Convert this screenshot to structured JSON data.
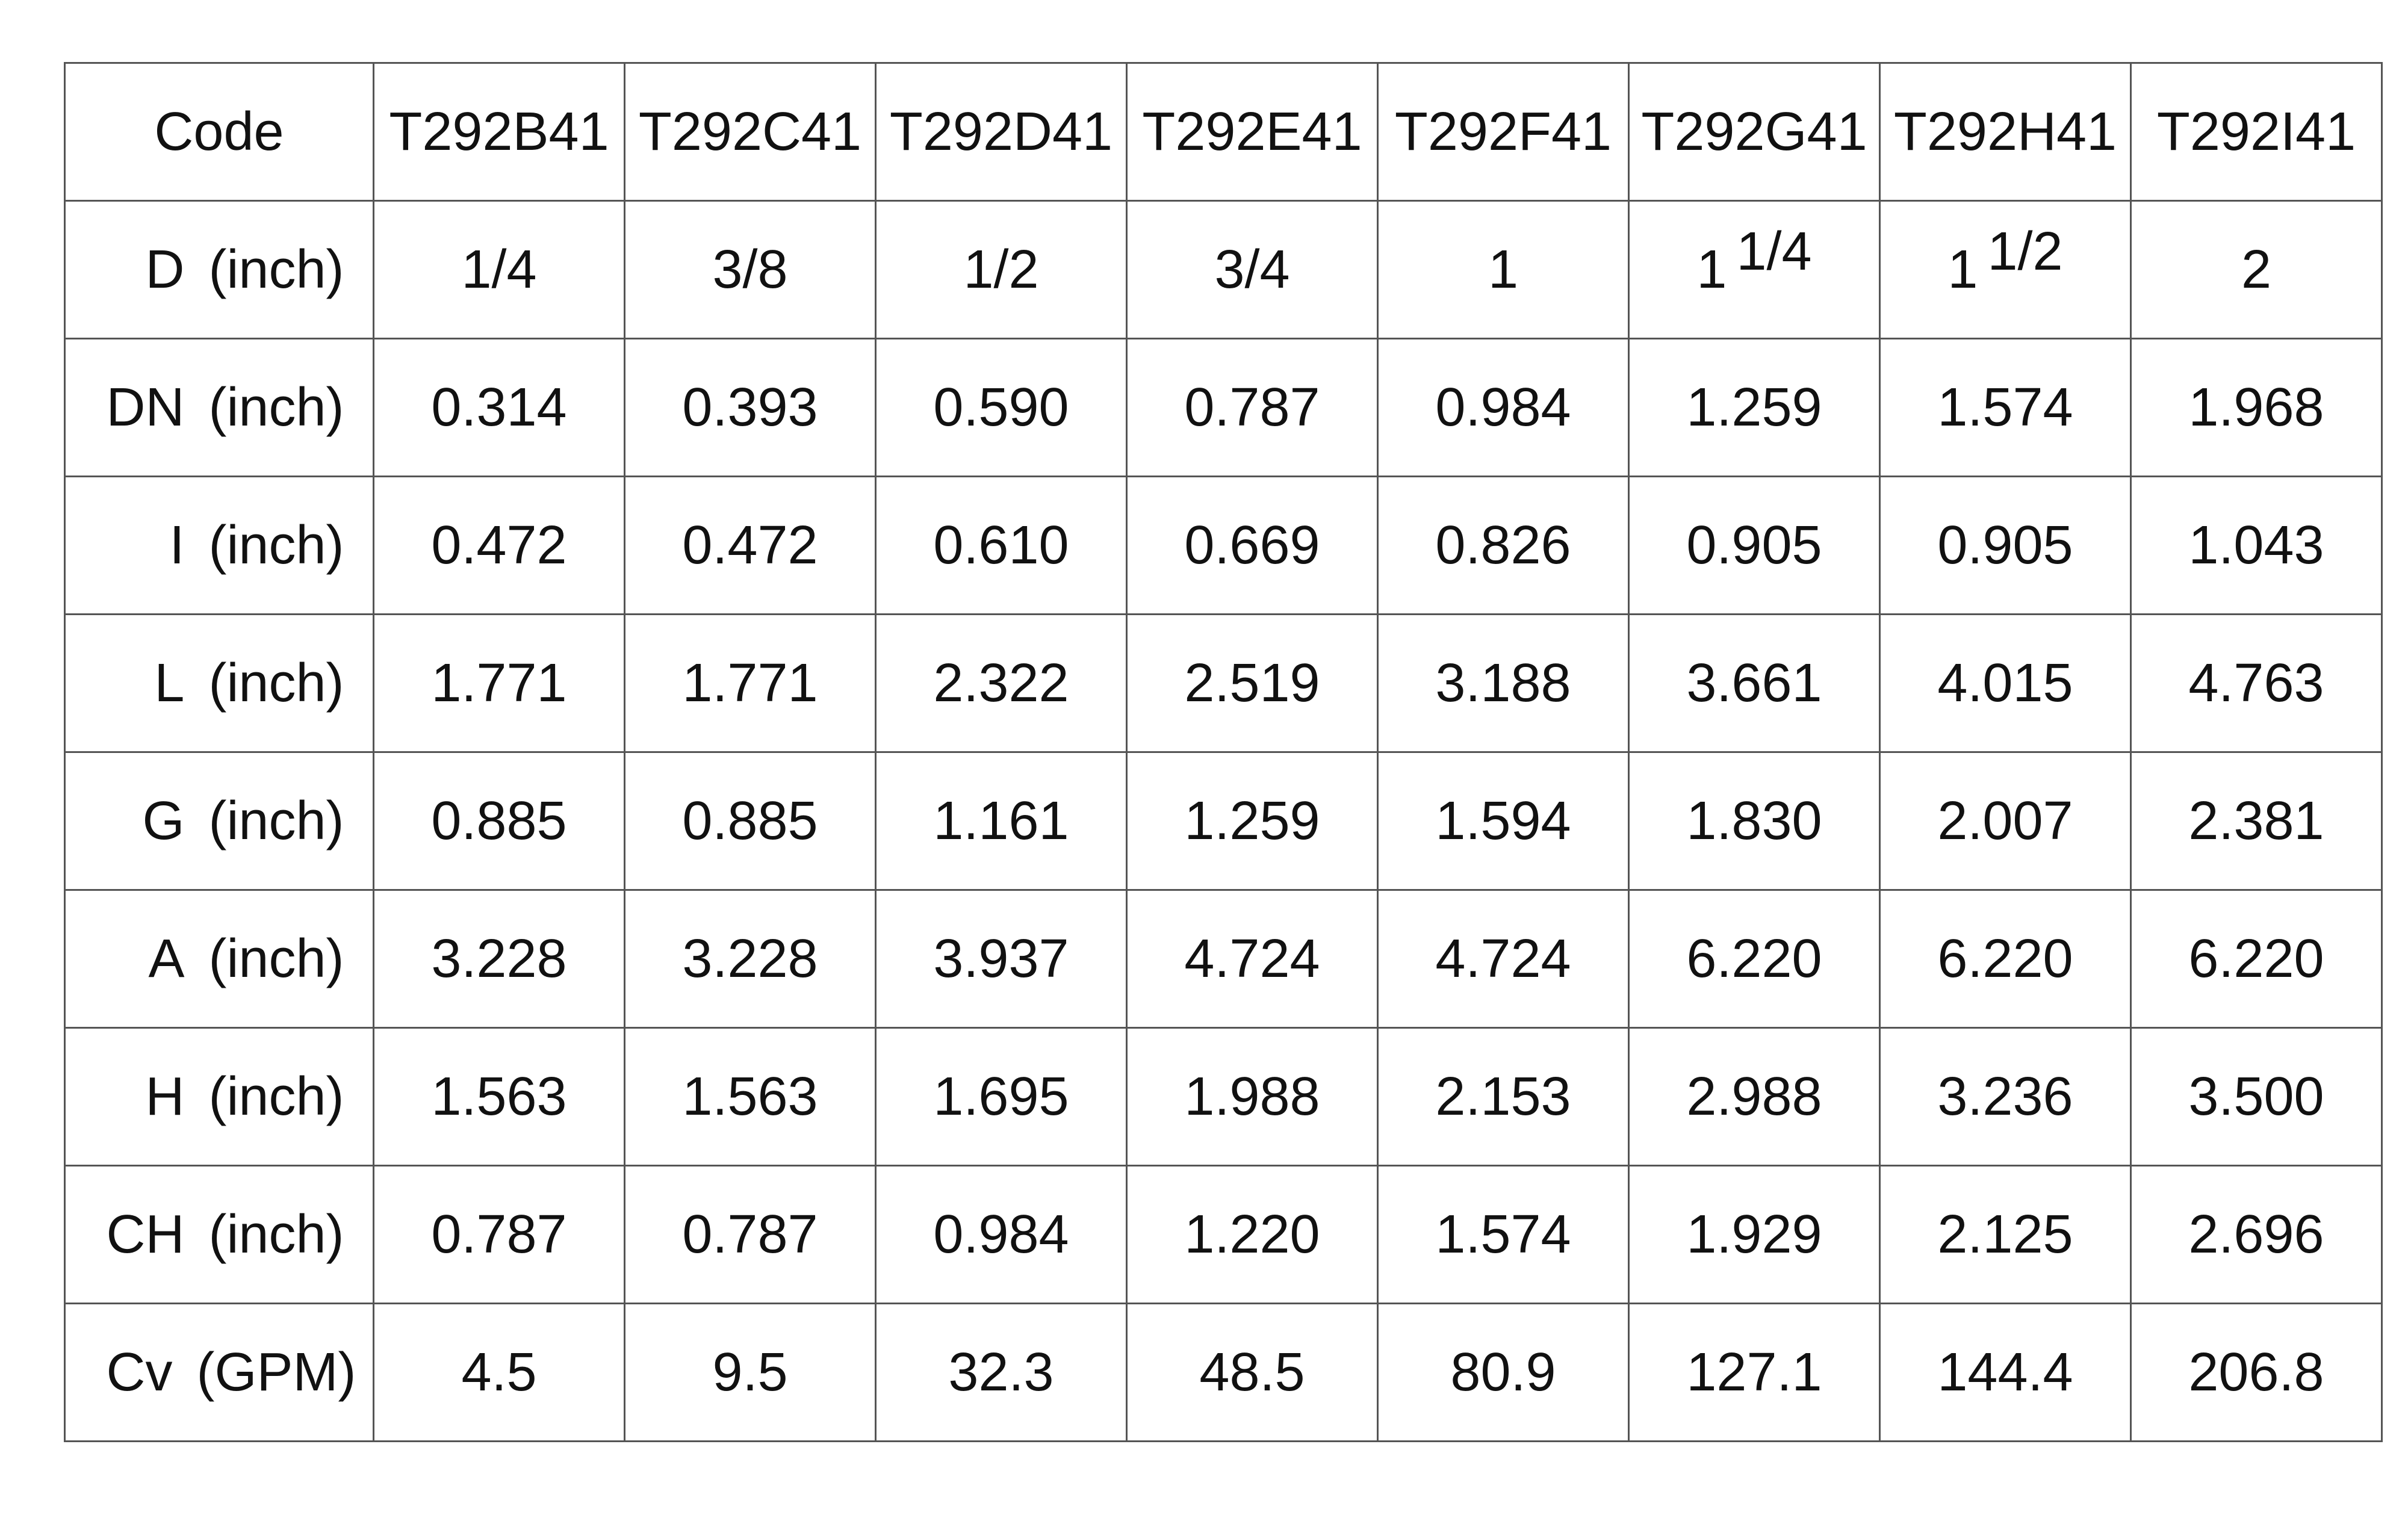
{
  "table": {
    "header": {
      "label": "Code",
      "codes": [
        "T292B41",
        "T292C41",
        "T292D41",
        "T292E41",
        "T292F41",
        "T292G41",
        "T292H41",
        "T292I41"
      ]
    },
    "rows": [
      {
        "symbol": "D",
        "unit": "(inch)",
        "values": [
          "1/4",
          "3/8",
          "1/2",
          "3/4",
          "1",
          {
            "whole": "1",
            "fraction": "1/4"
          },
          {
            "whole": "1",
            "fraction": "1/2"
          },
          "2"
        ]
      },
      {
        "symbol": "DN",
        "unit": "(inch)",
        "values": [
          "0.314",
          "0.393",
          "0.590",
          "0.787",
          "0.984",
          "1.259",
          "1.574",
          "1.968"
        ]
      },
      {
        "symbol": "I",
        "unit": "(inch)",
        "values": [
          "0.472",
          "0.472",
          "0.610",
          "0.669",
          "0.826",
          "0.905",
          "0.905",
          "1.043"
        ]
      },
      {
        "symbol": "L",
        "unit": "(inch)",
        "values": [
          "1.771",
          "1.771",
          "2.322",
          "2.519",
          "3.188",
          "3.661",
          "4.015",
          "4.763"
        ]
      },
      {
        "symbol": "G",
        "unit": "(inch)",
        "values": [
          "0.885",
          "0.885",
          "1.161",
          "1.259",
          "1.594",
          "1.830",
          "2.007",
          "2.381"
        ]
      },
      {
        "symbol": "A",
        "unit": "(inch)",
        "values": [
          "3.228",
          "3.228",
          "3.937",
          "4.724",
          "4.724",
          "6.220",
          "6.220",
          "6.220"
        ]
      },
      {
        "symbol": "H",
        "unit": "(inch)",
        "values": [
          "1.563",
          "1.563",
          "1.695",
          "1.988",
          "2.153",
          "2.988",
          "3.236",
          "3.500"
        ]
      },
      {
        "symbol": "CH",
        "unit": "(inch)",
        "values": [
          "0.787",
          "0.787",
          "0.984",
          "1.220",
          "1.574",
          "1.929",
          "2.125",
          "2.696"
        ]
      },
      {
        "symbol": "Cv",
        "unit": "(GPM)",
        "values": [
          "4.5",
          "9.5",
          "32.3",
          "48.5",
          "80.9",
          "127.1",
          "144.4",
          "206.8"
        ]
      }
    ]
  }
}
